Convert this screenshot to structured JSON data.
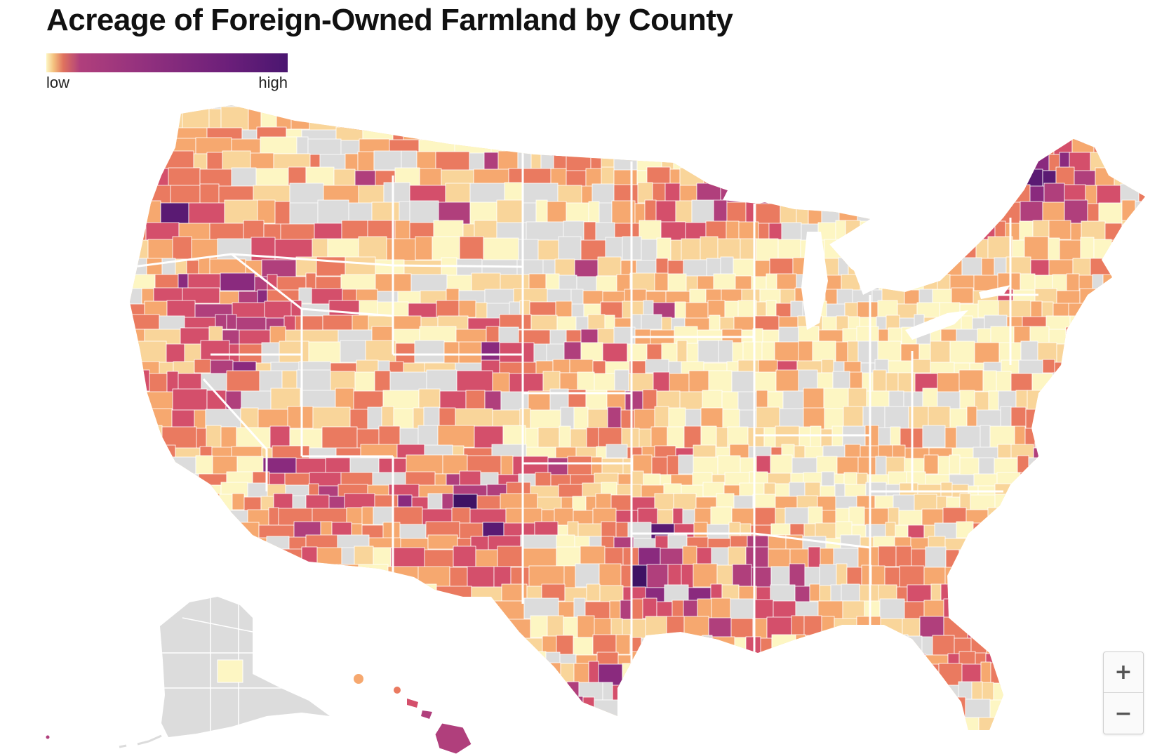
{
  "title": "Acreage of Foreign-Owned Farmland by County",
  "legend": {
    "low_label": "low",
    "high_label": "high"
  },
  "colors": {
    "no_data": "#dcdcdc",
    "ramp": [
      "#fdf6c3",
      "#f9d59a",
      "#f6a86f",
      "#ea7a60",
      "#d44f6b",
      "#b03f7c",
      "#8a2a7e",
      "#5a1a73",
      "#3f1264"
    ],
    "border": "#ffffff"
  },
  "controls": {
    "zoom_in_label": "+",
    "zoom_out_label": "−"
  }
}
